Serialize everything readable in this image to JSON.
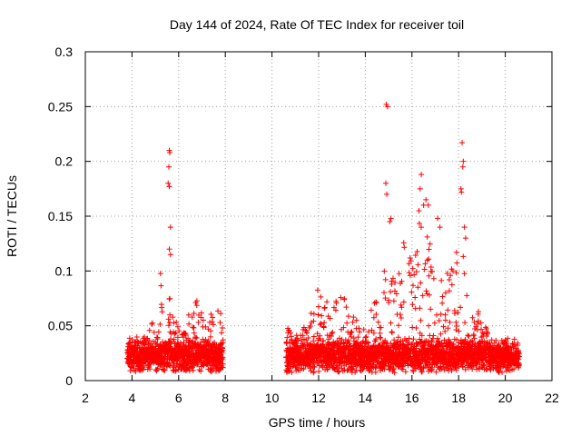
{
  "chart_data": {
    "type": "scatter",
    "title": "Day 144 of 2024, Rate Of TEC Index for receiver toil",
    "xlabel": "GPS time / hours",
    "ylabel": "ROTI / TECUs",
    "xlim": [
      2,
      22
    ],
    "ylim": [
      0,
      0.3
    ],
    "xticks": [
      2,
      4,
      6,
      8,
      10,
      12,
      14,
      16,
      18,
      20,
      22
    ],
    "yticks": [
      0,
      0.05,
      0.1,
      0.15,
      0.2,
      0.25,
      0.3
    ],
    "xtick_labels": [
      "2",
      "4",
      "6",
      "8",
      "10",
      "12",
      "14",
      "16",
      "18",
      "20",
      "22"
    ],
    "ytick_labels": [
      "0",
      "0.05",
      "0.1",
      "0.15",
      "0.2",
      "0.25",
      "0.3"
    ],
    "grid": true,
    "marker": "+",
    "color": "#ff0000",
    "series": [
      {
        "name": "ROTI",
        "segments": [
          {
            "x_start": 3.8,
            "x_end": 7.9
          },
          {
            "x_start": 10.6,
            "x_end": 20.6
          }
        ],
        "envelope": [
          [
            3.8,
            0.03
          ],
          [
            4.2,
            0.045
          ],
          [
            4.6,
            0.04
          ],
          [
            5.0,
            0.065
          ],
          [
            5.2,
            0.1
          ],
          [
            5.5,
            0.11
          ],
          [
            5.7,
            0.06
          ],
          [
            6.0,
            0.05
          ],
          [
            6.3,
            0.045
          ],
          [
            6.6,
            0.08
          ],
          [
            6.9,
            0.07
          ],
          [
            7.2,
            0.06
          ],
          [
            7.5,
            0.07
          ],
          [
            7.9,
            0.06
          ],
          [
            10.6,
            0.05
          ],
          [
            11.0,
            0.045
          ],
          [
            11.5,
            0.06
          ],
          [
            12.0,
            0.085
          ],
          [
            12.5,
            0.07
          ],
          [
            13.0,
            0.08
          ],
          [
            13.5,
            0.06
          ],
          [
            14.0,
            0.05
          ],
          [
            14.5,
            0.085
          ],
          [
            14.8,
            0.1
          ],
          [
            15.2,
            0.1
          ],
          [
            15.6,
            0.13
          ],
          [
            16.0,
            0.11
          ],
          [
            16.3,
            0.17
          ],
          [
            16.6,
            0.16
          ],
          [
            17.0,
            0.12
          ],
          [
            17.4,
            0.11
          ],
          [
            17.8,
            0.12
          ],
          [
            18.1,
            0.13
          ],
          [
            18.4,
            0.08
          ],
          [
            18.8,
            0.07
          ],
          [
            19.2,
            0.05
          ],
          [
            19.6,
            0.03
          ],
          [
            20.0,
            0.028
          ],
          [
            20.6,
            0.02
          ]
        ],
        "outliers": [
          {
            "x": 5.6,
            "y": 0.21
          },
          {
            "x": 5.62,
            "y": 0.208
          },
          {
            "x": 5.58,
            "y": 0.195
          },
          {
            "x": 5.55,
            "y": 0.18
          },
          {
            "x": 5.6,
            "y": 0.177
          },
          {
            "x": 5.65,
            "y": 0.14
          },
          {
            "x": 5.6,
            "y": 0.12
          },
          {
            "x": 5.65,
            "y": 0.115
          },
          {
            "x": 14.9,
            "y": 0.252
          },
          {
            "x": 14.95,
            "y": 0.25
          },
          {
            "x": 14.88,
            "y": 0.18
          },
          {
            "x": 14.92,
            "y": 0.17
          },
          {
            "x": 15.1,
            "y": 0.148
          },
          {
            "x": 15.05,
            "y": 0.145
          },
          {
            "x": 16.4,
            "y": 0.188
          },
          {
            "x": 16.35,
            "y": 0.175
          },
          {
            "x": 16.6,
            "y": 0.165
          },
          {
            "x": 16.7,
            "y": 0.16
          },
          {
            "x": 16.3,
            "y": 0.155
          },
          {
            "x": 16.5,
            "y": 0.16
          },
          {
            "x": 17.1,
            "y": 0.148
          },
          {
            "x": 17.2,
            "y": 0.14
          },
          {
            "x": 18.15,
            "y": 0.217
          },
          {
            "x": 18.2,
            "y": 0.2
          },
          {
            "x": 18.18,
            "y": 0.195
          },
          {
            "x": 18.1,
            "y": 0.175
          },
          {
            "x": 18.12,
            "y": 0.172
          },
          {
            "x": 18.25,
            "y": 0.14
          },
          {
            "x": 18.3,
            "y": 0.13
          }
        ]
      }
    ]
  }
}
